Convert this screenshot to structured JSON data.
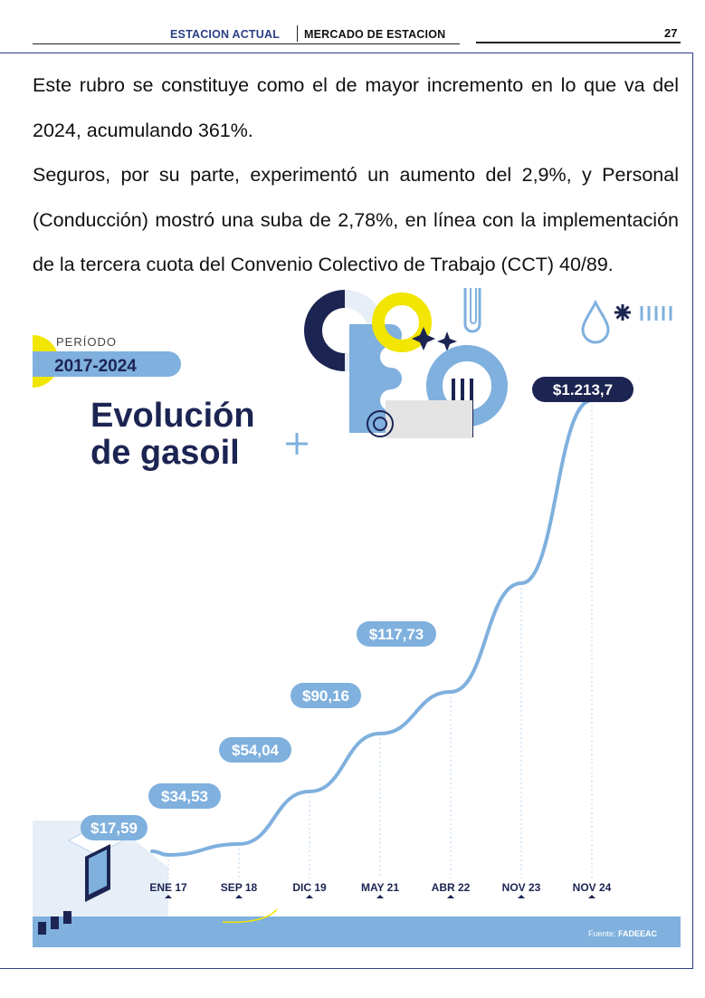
{
  "header": {
    "section": "ESTACION ACTUAL",
    "title": "MERCADO DE ESTACION",
    "page_number": "27"
  },
  "body": {
    "paragraphs": [
      "Este rubro se constituye como el de mayor incremento en lo que va del 2024, acumulando 361%.",
      "Seguros, por su parte, experimentó un aumento del 2,9%, y Personal (Conducción) mostró una suba de 2,78%, en línea con la implementación de la tercera cuota del Convenio Colectivo de Trabajo (CCT) 40/89."
    ]
  },
  "infographic": {
    "period_label": "PERÍODO",
    "period_value": "2017-2024",
    "title_line1": "Evolución",
    "title_line2": "de gasoil",
    "source_label": "Fuente:",
    "source_value": "FADEEAC",
    "colors": {
      "navy": "#1c2452",
      "blue": "#7fb0de",
      "light_blue": "#b9d4ee",
      "yellow": "#f2e600",
      "pale": "#e7eef7"
    }
  },
  "chart_data": {
    "type": "line",
    "categories": [
      "ENE 17",
      "SEP 18",
      "DIC 19",
      "MAY 21",
      "ABR 22",
      "NOV 23",
      "NOV 24"
    ],
    "x_positions": [
      0,
      1,
      2,
      3,
      4,
      5,
      6
    ],
    "data_labels": [
      {
        "x": "ENE 17",
        "text": "$17,59"
      },
      {
        "x": "SEP 18",
        "text": "$34,53"
      },
      {
        "x": "DIC 19",
        "text": "$54,04"
      },
      {
        "x": "MAY 21",
        "text": "$90,16"
      },
      {
        "x": "ABR 22",
        "text": "$117,73"
      },
      {
        "x": "NOV 24",
        "text": "$1.213,7"
      }
    ],
    "values": [
      17.59,
      34.53,
      54.04,
      90.16,
      117.73,
      null,
      1213.7
    ],
    "title": "",
    "xlabel": "",
    "ylabel": "",
    "grid": false,
    "legend": "none"
  }
}
